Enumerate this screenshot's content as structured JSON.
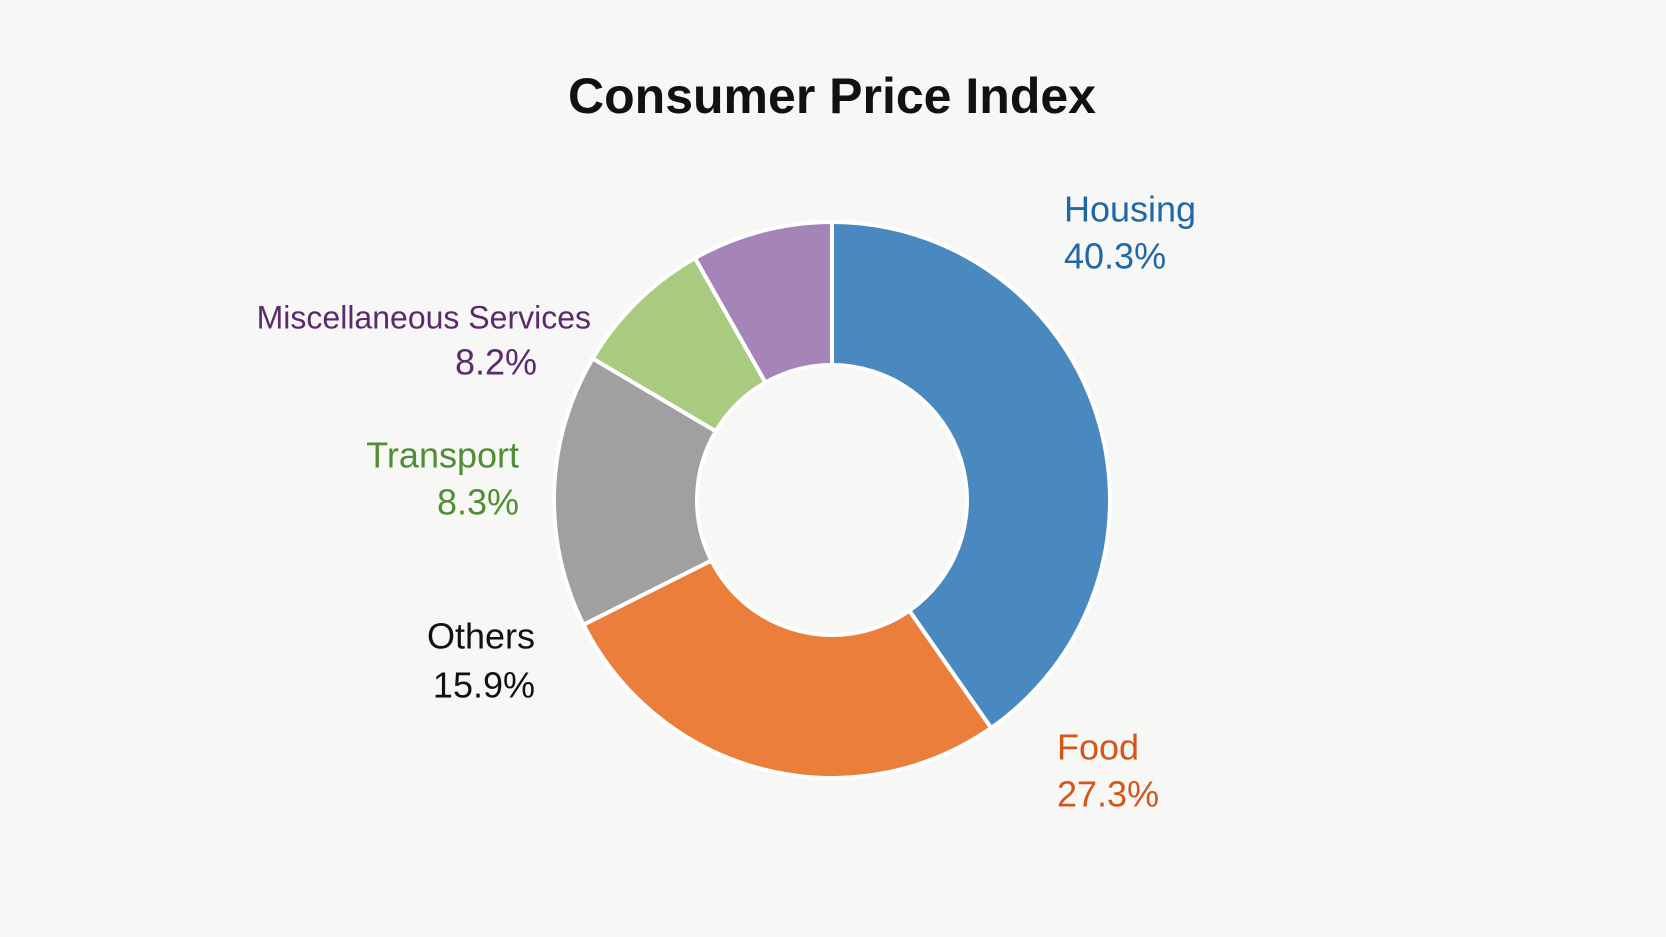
{
  "chart_data": {
    "type": "pie",
    "title": "Consumer Price Index",
    "categories": [
      "Housing",
      "Food",
      "Others",
      "Transport",
      "Miscellaneous Services"
    ],
    "values": [
      40.3,
      27.3,
      15.9,
      8.3,
      8.2
    ],
    "value_labels": [
      "40.3%",
      "27.3%",
      "15.9%",
      "8.3%",
      "8.2%"
    ],
    "colors": [
      "#4a89bf",
      "#ec7e3b",
      "#a0a0a0",
      "#a9cb80",
      "#a585b8"
    ],
    "label_colors": [
      "#1f67a8",
      "#d4561a",
      "#111111",
      "#4f8e35",
      "#5b2a6e"
    ],
    "donut": true
  }
}
